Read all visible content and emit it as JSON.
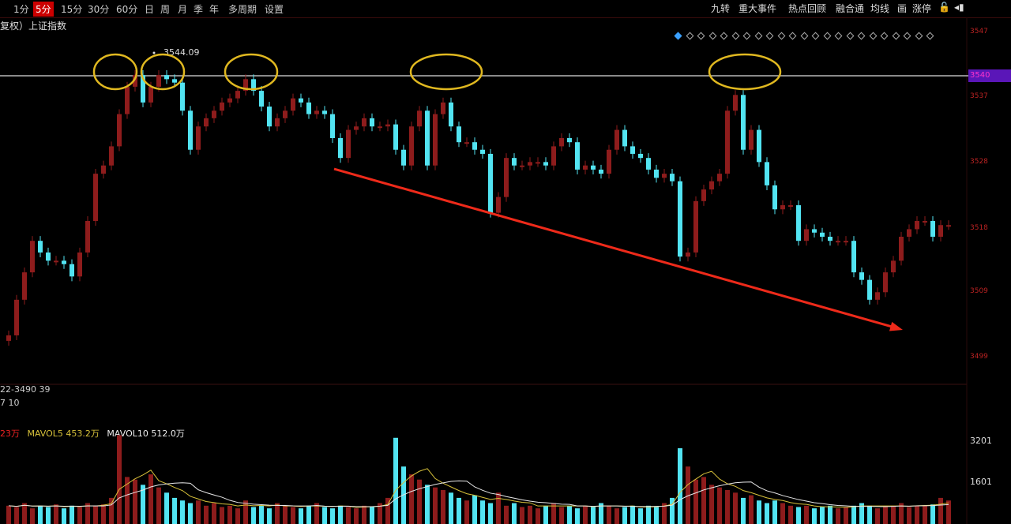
{
  "toolbar": {
    "periods": [
      "1分",
      "5分",
      "15分",
      "30分",
      "60分",
      "日",
      "周",
      "月",
      "季",
      "年",
      "多周期",
      "设置"
    ],
    "active_period": "5分",
    "tools": [
      "九转",
      "重大事件",
      "热点回顾",
      "融合通",
      "均线",
      "画",
      "涨停"
    ],
    "lock_icon": "lock-icon",
    "pin_icon": "pin-icon"
  },
  "header": {
    "title": "复权）上证指数"
  },
  "info": {
    "line1": "22-3490 39",
    "line2": "7 10"
  },
  "volume_legend": {
    "vol": "23万",
    "mavol5": "MAVOL5 453.2万",
    "mavol10": "MAVOL10 512.0万"
  },
  "colors": {
    "up": "#8e1c1c",
    "down": "#52e4f2",
    "mavol5": "#d8c23a",
    "mavol10": "#e8e8e8",
    "ellipse": "#e0b820",
    "arrow": "#ee2a1a",
    "current_price_bg": "#5a16b8"
  },
  "chart_data": [
    {
      "type": "candlestick",
      "price_ticks": [
        "3547",
        "3540",
        "3537",
        "3528",
        "3518",
        "3509",
        "3499"
      ],
      "current_price_label": "3540",
      "high_annotation": "3544.09",
      "horizontal_line_price": 3540,
      "closes": [
        3502.1,
        3507.3,
        3511.3,
        3515.9,
        3514.2,
        3513.0,
        3513.0,
        3512.5,
        3510.7,
        3514.2,
        3518.8,
        3525.7,
        3526.9,
        3529.7,
        3534.4,
        3538.4,
        3540.1,
        3536.1,
        3538.4,
        3540.1,
        3539.5,
        3539.0,
        3534.9,
        3529.2,
        3532.6,
        3533.8,
        3534.9,
        3536.1,
        3536.7,
        3537.8,
        3539.5,
        3537.8,
        3535.5,
        3532.6,
        3533.8,
        3534.9,
        3536.7,
        3536.1,
        3534.4,
        3534.9,
        3534.4,
        3530.9,
        3528.0,
        3532.1,
        3532.6,
        3533.8,
        3532.6,
        3532.6,
        3532.9,
        3529.2,
        3526.9,
        3532.6,
        3534.9,
        3526.9,
        3534.4,
        3536.1,
        3532.6,
        3530.3,
        3530.3,
        3529.2,
        3528.6,
        3520.0,
        3522.3,
        3528.0,
        3526.9,
        3526.9,
        3527.4,
        3527.4,
        3526.9,
        3529.7,
        3530.9,
        3530.3,
        3526.3,
        3526.9,
        3526.3,
        3525.7,
        3529.2,
        3532.1,
        3529.7,
        3528.6,
        3528.0,
        3526.3,
        3525.1,
        3525.7,
        3524.6,
        3513.6,
        3514.2,
        3521.7,
        3523.4,
        3524.6,
        3525.7,
        3534.9,
        3537.2,
        3529.2,
        3532.1,
        3527.4,
        3524.0,
        3520.5,
        3521.1,
        3521.1,
        3515.9,
        3517.6,
        3517.1,
        3516.5,
        3515.9,
        3515.9,
        3515.9,
        3511.3,
        3510.2,
        3507.3,
        3508.4,
        3511.3,
        3513.0,
        3516.5,
        3517.6,
        3518.8,
        3518.8,
        3516.5,
        3518.2,
        3518.2
      ],
      "annotations": {
        "ellipses_at_candle": [
          13.5,
          19.5,
          30.7,
          55.4,
          93.2
        ],
        "ellipse_price": 3540,
        "arrow": {
          "from": {
            "candle": 41.2,
            "price": 3526.4
          },
          "to": {
            "candle": 113.2,
            "price": 3502.9
          }
        }
      }
    },
    {
      "type": "bar",
      "name": "volume",
      "ticks": [
        "3201",
        "1601"
      ],
      "values": [
        700,
        650,
        800,
        600,
        700,
        650,
        750,
        600,
        700,
        650,
        800,
        700,
        750,
        1000,
        3400,
        1800,
        1700,
        1500,
        1900,
        1400,
        1200,
        1000,
        900,
        800,
        900,
        700,
        800,
        650,
        700,
        600,
        900,
        650,
        700,
        600,
        800,
        700,
        650,
        600,
        700,
        800,
        650,
        600,
        700,
        650,
        600,
        700,
        650,
        800,
        1000,
        3300,
        2200,
        1900,
        1700,
        1500,
        1400,
        1300,
        1200,
        1000,
        900,
        1100,
        900,
        800,
        1200,
        700,
        800,
        650,
        700,
        600,
        700,
        800,
        650,
        700,
        600,
        700,
        650,
        800,
        700,
        600,
        650,
        700,
        600,
        700,
        650,
        800,
        1000,
        2900,
        2200,
        1700,
        1800,
        1500,
        1400,
        1300,
        1200,
        1000,
        1100,
        900,
        800,
        900,
        800,
        700,
        650,
        700,
        600,
        650,
        700,
        600,
        650,
        700,
        800,
        700,
        600,
        650,
        700,
        800,
        650,
        700,
        700,
        750,
        1000,
        900
      ]
    }
  ]
}
